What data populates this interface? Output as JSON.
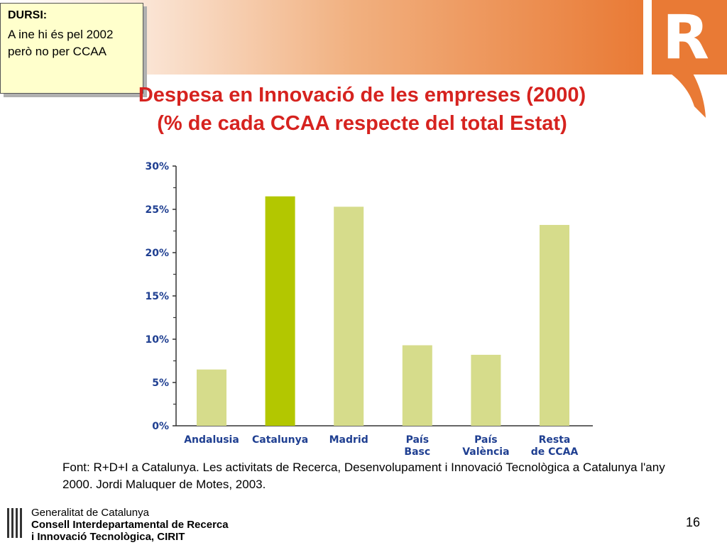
{
  "note": {
    "title": "DURSI:",
    "body": "A ine hi és pel 2002 però no per CCAA"
  },
  "title": {
    "line1": "Despesa en Innovació de les empreses (2000)",
    "line2": "(% de cada CCAA respecte del total Estat)"
  },
  "logo": {
    "letter": "R",
    "color": "#e97a35"
  },
  "chart_data": {
    "type": "bar",
    "categories": [
      [
        "Andalusia"
      ],
      [
        "Catalunya"
      ],
      [
        "Madrid"
      ],
      [
        "País",
        "Basc"
      ],
      [
        "País",
        "València"
      ],
      [
        "Resta",
        "de CCAA"
      ]
    ],
    "values": [
      6.5,
      26.5,
      25.3,
      9.3,
      8.2,
      23.2
    ],
    "highlight_index": 1,
    "ylim": [
      0,
      30
    ],
    "yticks": [
      "0%",
      "5%",
      "10%",
      "15%",
      "20%",
      "25%",
      "30%"
    ],
    "title": "",
    "xlabel": "",
    "ylabel": "",
    "colors": {
      "bar": "#d6dc8b",
      "highlight": "#b3c700",
      "text": "#1f3f91",
      "axis": "#333333"
    }
  },
  "source": "Font: R+D+I a Catalunya. Les activitats de Recerca, Desenvolupament i Innovació Tecnològica a Catalunya l'any 2000. Jordi Maluquer de Motes, 2003.",
  "footer": {
    "line1": "Generalitat de Catalunya",
    "line2": "Consell Interdepartamental de Recerca",
    "line3": "i Innovació Tecnològica, CIRIT"
  },
  "page_number": "16"
}
